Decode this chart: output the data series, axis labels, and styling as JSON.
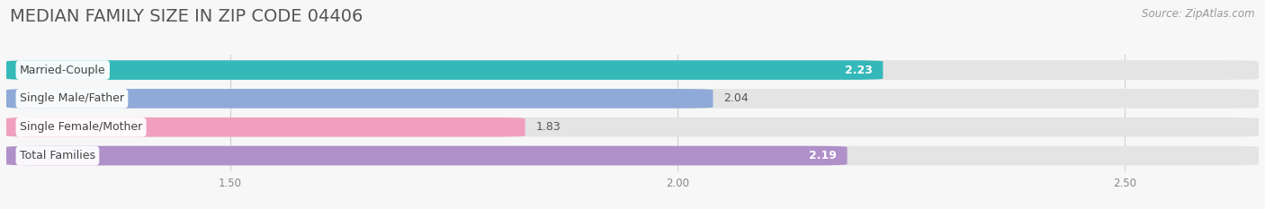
{
  "title": "MEDIAN FAMILY SIZE IN ZIP CODE 04406",
  "source": "Source: ZipAtlas.com",
  "categories": [
    "Married-Couple",
    "Single Male/Father",
    "Single Female/Mother",
    "Total Families"
  ],
  "values": [
    2.23,
    2.04,
    1.83,
    2.19
  ],
  "bar_colors": [
    "#35b8b8",
    "#8faad8",
    "#f0a0be",
    "#b090c8"
  ],
  "value_inside": [
    true,
    false,
    false,
    true
  ],
  "xlim_left": 1.25,
  "xlim_right": 2.65,
  "xticks": [
    1.5,
    2.0,
    2.5
  ],
  "background_color": "#f7f7f7",
  "bar_background_color": "#e4e4e4",
  "bar_height": 0.68,
  "title_fontsize": 14,
  "label_fontsize": 9,
  "value_fontsize": 9,
  "source_fontsize": 8.5,
  "title_color": "#555555",
  "source_color": "#999999",
  "label_text_color": "#444444",
  "tick_color": "#888888",
  "grid_color": "#d0d0d0"
}
